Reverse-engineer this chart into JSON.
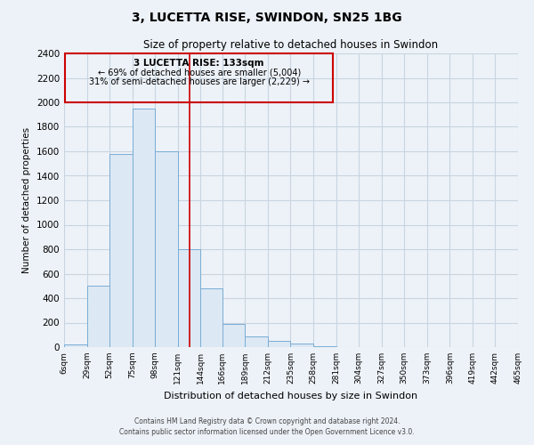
{
  "title": "3, LUCETTA RISE, SWINDON, SN25 1BG",
  "subtitle": "Size of property relative to detached houses in Swindon",
  "xlabel": "Distribution of detached houses by size in Swindon",
  "ylabel": "Number of detached properties",
  "bin_edges": [
    6,
    29,
    52,
    75,
    98,
    121,
    144,
    166,
    189,
    212,
    235,
    258,
    281,
    304,
    327,
    350,
    373,
    396,
    419,
    442,
    465
  ],
  "bar_heights": [
    25,
    500,
    1580,
    1950,
    1600,
    800,
    480,
    190,
    90,
    50,
    30,
    5,
    2,
    0,
    0,
    0,
    0,
    0,
    0,
    0
  ],
  "bar_color": "#dce8f4",
  "bar_edgecolor": "#7aadd4",
  "ylim": [
    0,
    2400
  ],
  "yticks": [
    0,
    200,
    400,
    600,
    800,
    1000,
    1200,
    1400,
    1600,
    1800,
    2000,
    2200,
    2400
  ],
  "vline_x": 133,
  "vline_color": "#cc0000",
  "annotation_title": "3 LUCETTA RISE: 133sqm",
  "annotation_line1": "← 69% of detached houses are smaller (5,004)",
  "annotation_line2": "31% of semi-detached houses are larger (2,229) →",
  "annotation_box_color": "#cc0000",
  "footnote1": "Contains HM Land Registry data © Crown copyright and database right 2024.",
  "footnote2": "Contains public sector information licensed under the Open Government Licence v3.0.",
  "background_color": "#edf2f8",
  "grid_color": "#c8d4e0",
  "tick_labels": [
    "6sqm",
    "29sqm",
    "52sqm",
    "75sqm",
    "98sqm",
    "121sqm",
    "144sqm",
    "166sqm",
    "189sqm",
    "212sqm",
    "235sqm",
    "258sqm",
    "281sqm",
    "304sqm",
    "327sqm",
    "350sqm",
    "373sqm",
    "396sqm",
    "419sqm",
    "442sqm",
    "465sqm"
  ]
}
